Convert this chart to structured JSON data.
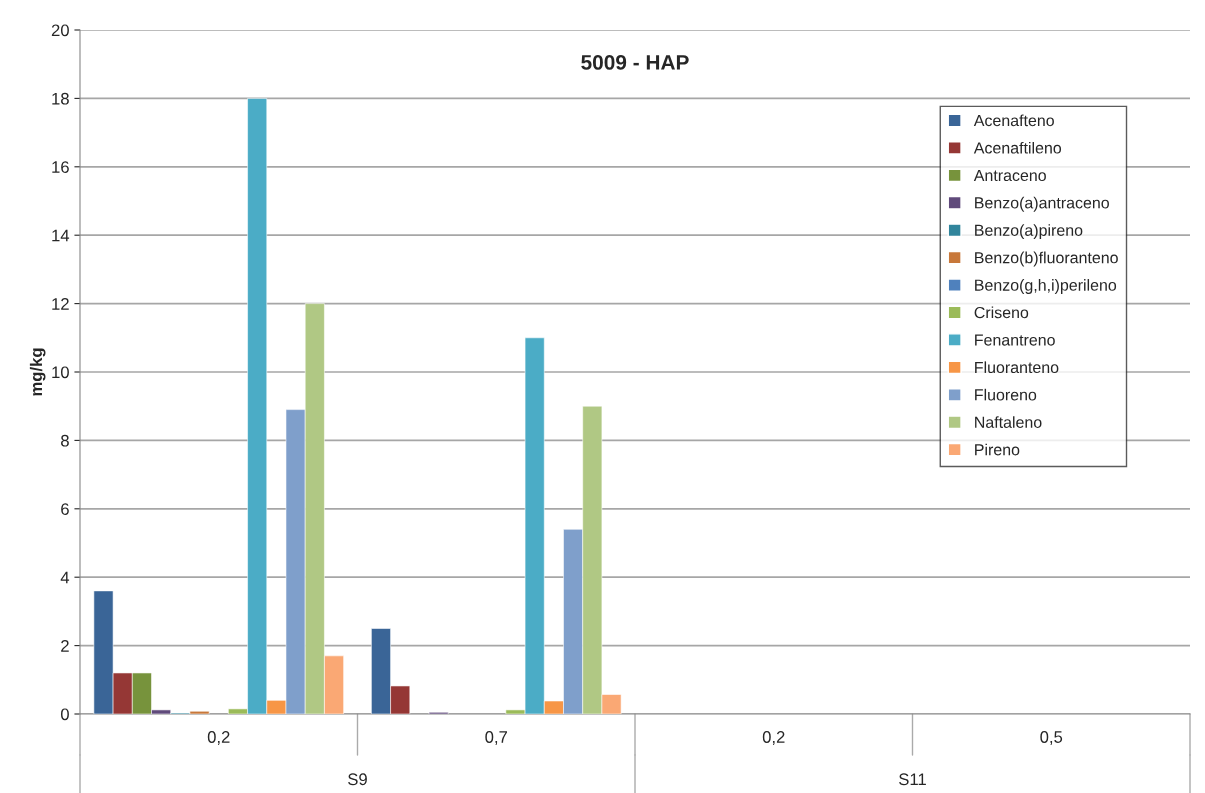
{
  "chart_data": {
    "type": "bar",
    "title": "5009 - HAP",
    "ylabel": "mg/kg",
    "categories": [
      "0,2",
      "0,7",
      "0,2",
      "0,5"
    ],
    "annotations": [
      "S9",
      "S11"
    ],
    "series": [
      {
        "name": "Acenafteno",
        "color": "#3a6597",
        "values": [
          3.6,
          2.5,
          null,
          null
        ]
      },
      {
        "name": "Acenaftileno",
        "color": "#953735",
        "values": [
          1.2,
          0.82,
          null,
          null
        ]
      },
      {
        "name": "Antraceno",
        "color": "#77933c",
        "values": [
          1.2,
          null,
          null,
          null
        ]
      },
      {
        "name": "Benzo(a)antraceno",
        "color": "#604a7b",
        "values": [
          0.12,
          0.05,
          null,
          null
        ]
      },
      {
        "name": "Benzo(a)pireno",
        "color": "#31859c",
        "values": [
          0.03,
          null,
          null,
          null
        ]
      },
      {
        "name": "Benzo(b)fluoranteno",
        "color": "#c8783a",
        "values": [
          0.08,
          null,
          null,
          null
        ]
      },
      {
        "name": "Benzo(g,h,i)perileno",
        "color": "#4f81bd",
        "values": [
          null,
          null,
          null,
          null
        ]
      },
      {
        "name": "Criseno",
        "color": "#9bbb59",
        "values": [
          0.15,
          0.12,
          null,
          null
        ]
      },
      {
        "name": "Fenantreno",
        "color": "#4bacc6",
        "values": [
          18,
          11,
          null,
          null
        ]
      },
      {
        "name": "Fluoranteno",
        "color": "#f79646",
        "values": [
          0.4,
          0.38,
          null,
          null
        ]
      },
      {
        "name": "Fluoreno",
        "color": "#7f9fcb",
        "values": [
          8.9,
          5.4,
          null,
          null
        ]
      },
      {
        "name": "Naftaleno",
        "color": "#b0c884",
        "values": [
          12,
          9,
          null,
          null
        ]
      },
      {
        "name": "Pireno",
        "color": "#faa874",
        "values": [
          1.7,
          0.57,
          null,
          null
        ]
      }
    ],
    "ylim": [
      0,
      20
    ],
    "yticks": [
      0,
      2,
      4,
      6,
      8,
      10,
      12,
      14,
      16,
      18,
      20
    ],
    "grid": "y",
    "legend": "top right"
  }
}
